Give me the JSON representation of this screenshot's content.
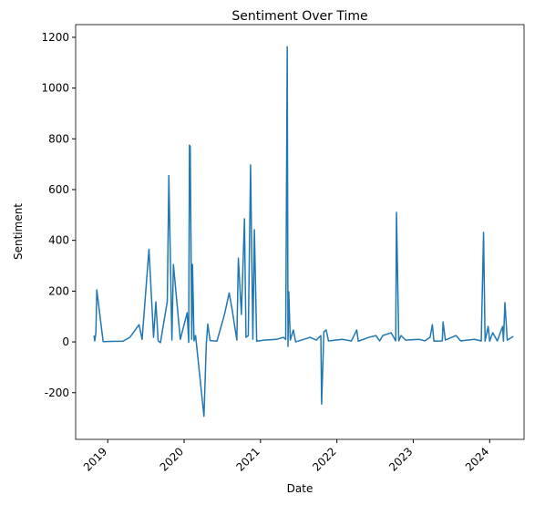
{
  "chart_data": {
    "type": "line",
    "title": "Sentiment Over Time",
    "x_label": "Date",
    "y_label": "Sentiment",
    "x": [
      2018.82,
      2018.83,
      2018.845,
      2018.857,
      2018.94,
      2019.2,
      2019.29,
      2019.41,
      2019.45,
      2019.54,
      2019.6,
      2019.63,
      2019.66,
      2019.69,
      2019.78,
      2019.8,
      2019.84,
      2019.86,
      2019.95,
      2020.04,
      2020.06,
      2020.07,
      2020.08,
      2020.1,
      2020.11,
      2020.13,
      2020.15,
      2020.26,
      2020.29,
      2020.31,
      2020.34,
      2020.43,
      2020.53,
      2020.59,
      2020.63,
      2020.69,
      2020.71,
      2020.75,
      2020.79,
      2020.81,
      2020.84,
      2020.87,
      2020.9,
      2020.92,
      2020.95,
      2021.05,
      2021.21,
      2021.3,
      2021.33,
      2021.35,
      2021.36,
      2021.37,
      2021.39,
      2021.43,
      2021.46,
      2021.65,
      2021.73,
      2021.79,
      2021.8,
      2021.83,
      2021.86,
      2021.89,
      2022.07,
      2022.19,
      2022.26,
      2022.28,
      2022.42,
      2022.51,
      2022.56,
      2022.6,
      2022.71,
      2022.77,
      2022.78,
      2022.81,
      2022.84,
      2022.9,
      2023.08,
      2023.15,
      2023.22,
      2023.25,
      2023.27,
      2023.38,
      2023.39,
      2023.42,
      2023.56,
      2023.62,
      2023.8,
      2023.89,
      2023.92,
      2023.94,
      2023.98,
      2024.0,
      2024.04,
      2024.1,
      2024.17,
      2024.18,
      2024.2,
      2024.23,
      2024.31
    ],
    "series": [
      {
        "name": "Sentiment",
        "color": "#1f77b4",
        "values": [
          25,
          4,
          36,
          205,
          1,
          3,
          18,
          68,
          10,
          365,
          18,
          158,
          4,
          -3,
          160,
          655,
          7,
          305,
          10,
          115,
          -2,
          775,
          770,
          10,
          305,
          4,
          25,
          -293,
          -10,
          70,
          5,
          3,
          110,
          193,
          125,
          7,
          330,
          108,
          485,
          18,
          25,
          697,
          10,
          442,
          3,
          7,
          10,
          18,
          10,
          1163,
          -18,
          198,
          7,
          47,
          0,
          18,
          7,
          25,
          -245,
          40,
          47,
          4,
          10,
          4,
          47,
          3,
          18,
          25,
          4,
          25,
          36,
          4,
          510,
          4,
          25,
          7,
          10,
          4,
          18,
          68,
          3,
          4,
          79,
          7,
          25,
          4,
          10,
          4,
          431,
          3,
          61,
          3,
          36,
          4,
          61,
          3,
          155,
          7,
          22
        ]
      }
    ],
    "xlim": [
      2018.58,
      2024.45
    ],
    "xticks": [
      2019,
      2020,
      2021,
      2022,
      2023,
      2024
    ],
    "ylim": [
      -384,
      1250
    ],
    "yticks": [
      -200,
      0,
      200,
      400,
      600,
      800,
      1000,
      1200
    ]
  }
}
